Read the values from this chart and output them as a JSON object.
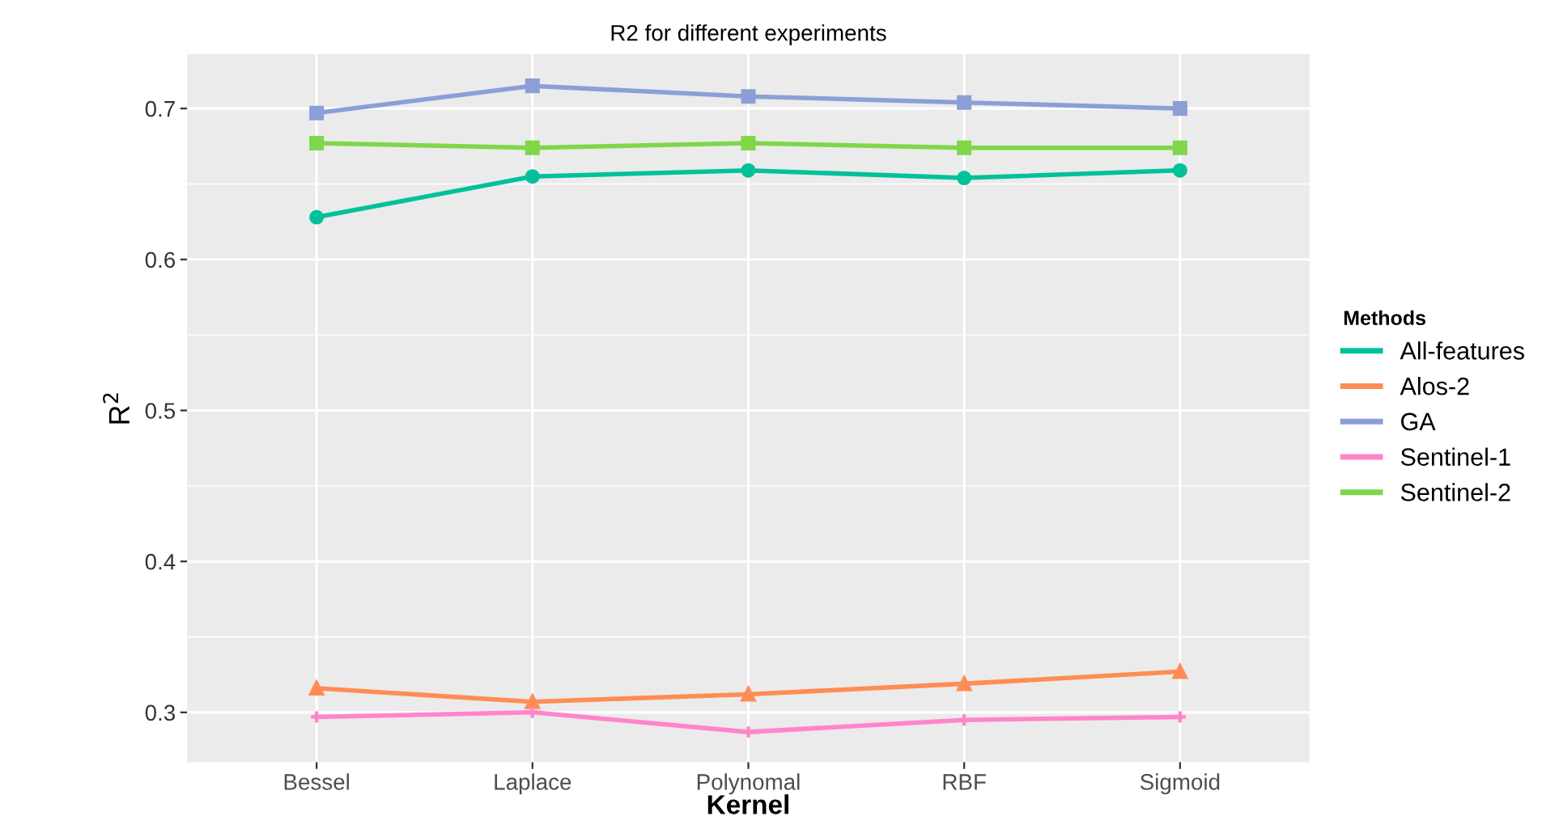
{
  "chart_data": {
    "type": "line",
    "title": "R2 for different experiments",
    "xlabel": "Kernel",
    "ylabel": "R$^{2}$",
    "legend_title": "Methods",
    "categories": [
      "Bessel",
      "Laplace",
      "Polynomal",
      "RBF",
      "Sigmoid"
    ],
    "series": [
      {
        "name": "All-features",
        "color": "#00c19a",
        "marker": "circle",
        "values": [
          0.628,
          0.655,
          0.659,
          0.654,
          0.659
        ]
      },
      {
        "name": "Alos-2",
        "color": "#ff8c55",
        "marker": "triangle",
        "values": [
          0.316,
          0.307,
          0.312,
          0.319,
          0.327
        ]
      },
      {
        "name": "GA",
        "color": "#8b9fd6",
        "marker": "square",
        "values": [
          0.697,
          0.715,
          0.708,
          0.704,
          0.7
        ]
      },
      {
        "name": "Sentinel-1",
        "color": "#ff85c8",
        "marker": "cross",
        "values": [
          0.297,
          0.3,
          0.287,
          0.295,
          0.297
        ]
      },
      {
        "name": "Sentinel-2",
        "color": "#7fd649",
        "marker": "square",
        "values": [
          0.677,
          0.674,
          0.677,
          0.674,
          0.674
        ]
      }
    ],
    "ylim": [
      0.267,
      0.736
    ],
    "yticks": [
      0.3,
      0.4,
      0.5,
      0.6,
      0.7
    ],
    "grid": true,
    "legend": "right",
    "line_style": "solid"
  }
}
